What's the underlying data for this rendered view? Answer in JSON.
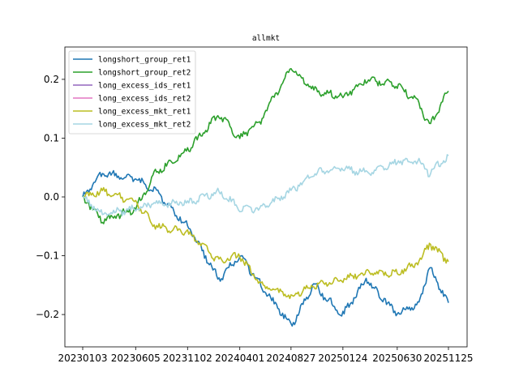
{
  "chart_data": {
    "type": "line",
    "title": "allmkt",
    "xlabel": "",
    "ylabel": "",
    "x_ticks": [
      "20230103",
      "20230605",
      "20231102",
      "20240401",
      "20240827",
      "20250124",
      "20250630",
      "20251125"
    ],
    "y_ticks": [
      -0.2,
      -0.1,
      0.0,
      0.1,
      0.2
    ],
    "y_tick_labels": [
      "−0.2",
      "−0.1",
      "0.0",
      "0.1",
      "0.2"
    ],
    "ylim": [
      -0.255,
      0.255
    ],
    "legend_position": "top-left",
    "grid": false,
    "series": [
      {
        "name": "longshort_group_ret1",
        "color": "#1f77b4",
        "x": [
          "20230103",
          "20230301",
          "20230605",
          "20230801",
          "20231102",
          "20240201",
          "20240401",
          "20240601",
          "20240827",
          "20241101",
          "20250124",
          "20250401",
          "20250630",
          "20250901",
          "20251001",
          "20251125"
        ],
        "values": [
          0.0,
          0.04,
          0.03,
          0.01,
          -0.05,
          -0.14,
          -0.1,
          -0.15,
          -0.22,
          -0.15,
          -0.2,
          -0.14,
          -0.2,
          -0.18,
          -0.12,
          -0.18
        ]
      },
      {
        "name": "longshort_group_ret2",
        "color": "#2ca02c",
        "x": [
          "20230103",
          "20230301",
          "20230605",
          "20230801",
          "20231102",
          "20240201",
          "20240401",
          "20240601",
          "20240827",
          "20241101",
          "20250124",
          "20250401",
          "20250630",
          "20250901",
          "20251001",
          "20251125"
        ],
        "values": [
          0.0,
          -0.04,
          -0.02,
          0.04,
          0.08,
          0.14,
          0.1,
          0.13,
          0.22,
          0.18,
          0.17,
          0.2,
          0.19,
          0.16,
          0.12,
          0.18
        ]
      },
      {
        "name": "long_excess_ids_ret1",
        "color": "#9467bd",
        "x": [],
        "values": []
      },
      {
        "name": "long_excess_ids_ret2",
        "color": "#e377c2",
        "x": [],
        "values": []
      },
      {
        "name": "long_excess_mkt_ret1",
        "color": "#bcbd22",
        "x": [
          "20230103",
          "20230301",
          "20230605",
          "20230801",
          "20231102",
          "20240201",
          "20240401",
          "20240601",
          "20240827",
          "20241101",
          "20250124",
          "20250401",
          "20250630",
          "20250901",
          "20251001",
          "20251125"
        ],
        "values": [
          0.0,
          0.01,
          -0.01,
          -0.05,
          -0.06,
          -0.11,
          -0.1,
          -0.15,
          -0.17,
          -0.15,
          -0.14,
          -0.13,
          -0.13,
          -0.11,
          -0.08,
          -0.11
        ]
      },
      {
        "name": "long_excess_mkt_ret2",
        "color": "#a6d6e3",
        "x": [
          "20230103",
          "20230301",
          "20230605",
          "20230801",
          "20231102",
          "20240201",
          "20240401",
          "20240601",
          "20240827",
          "20241101",
          "20250124",
          "20250401",
          "20250630",
          "20250901",
          "20251001",
          "20251125"
        ],
        "values": [
          0.0,
          -0.03,
          -0.02,
          -0.01,
          -0.01,
          0.01,
          -0.02,
          -0.02,
          0.01,
          0.04,
          0.05,
          0.04,
          0.06,
          0.06,
          0.04,
          0.07
        ]
      }
    ]
  }
}
